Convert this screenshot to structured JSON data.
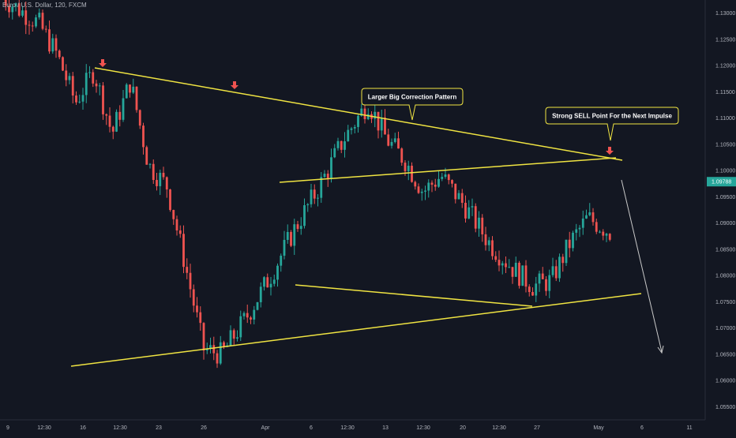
{
  "symbol": "Euro / U.S. Dollar, 120, FXCM",
  "colors": {
    "background": "#131722",
    "up": "#26a69a",
    "down": "#ef5350",
    "trendline": "#f0e442",
    "arrow": "#ef5350",
    "projection": "#c9c9c9",
    "axis_text": "#b2b5be",
    "callout_bg": "#131722",
    "callout_border": "#f0e442"
  },
  "chart_data": {
    "type": "candlestick",
    "title": "",
    "ylim": [
      1.0525,
      1.1325
    ],
    "y_ticks": [
      "1.13000",
      "1.12500",
      "1.12000",
      "1.11500",
      "1.11000",
      "1.10500",
      "1.10000",
      "1.09500",
      "1.09000",
      "1.08500",
      "1.08000",
      "1.07500",
      "1.07000",
      "1.06500",
      "1.06000",
      "1.05500"
    ],
    "x_ticks": [
      "9",
      "12:30",
      "16",
      "12:30",
      "23",
      "26",
      "Apr",
      "6",
      "12:30",
      "13",
      "12:30",
      "20",
      "12:30",
      "27",
      "May",
      "6",
      "11"
    ],
    "current_price": "1.09788",
    "price_path": [
      [
        0.0,
        1.133
      ],
      [
        0.06,
        1.128
      ],
      [
        0.09,
        1.122
      ],
      [
        0.12,
        1.113
      ],
      [
        0.15,
        1.119
      ],
      [
        0.18,
        1.107
      ],
      [
        0.21,
        1.117
      ],
      [
        0.24,
        1.101
      ],
      [
        0.27,
        1.097
      ],
      [
        0.3,
        1.082
      ],
      [
        0.33,
        1.066
      ],
      [
        0.36,
        1.065
      ],
      [
        0.4,
        1.072
      ],
      [
        0.44,
        1.08
      ],
      [
        0.48,
        1.089
      ],
      [
        0.52,
        1.097
      ],
      [
        0.56,
        1.106
      ],
      [
        0.6,
        1.113
      ],
      [
        0.63,
        1.106
      ],
      [
        0.66,
        1.102
      ],
      [
        0.69,
        1.096
      ],
      [
        0.72,
        1.099
      ],
      [
        0.76,
        1.093
      ],
      [
        0.8,
        1.086
      ],
      [
        0.84,
        1.081
      ],
      [
        0.87,
        1.078
      ],
      [
        0.9,
        1.079
      ],
      [
        0.93,
        1.086
      ],
      [
        0.96,
        1.091
      ],
      [
        1.0,
        1.088
      ]
    ],
    "annotations": [
      {
        "text": "Larger Big Correction Pattern"
      },
      {
        "text": "Strong SELL Point For the Next Impulse"
      }
    ]
  }
}
